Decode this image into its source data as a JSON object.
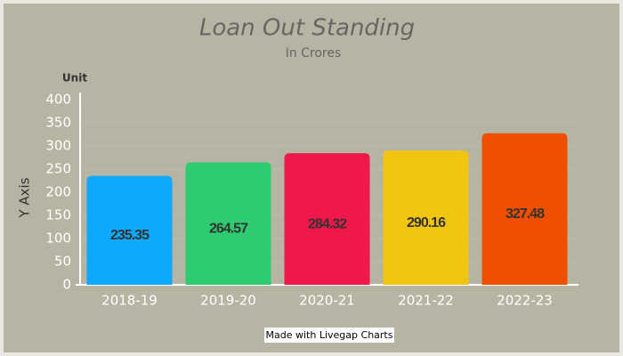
{
  "chart_data": {
    "type": "bar",
    "title": "Loan Out Standing",
    "subtitle": "In Crores",
    "y_axis_label": "Y Axis",
    "unit_label": "Unit",
    "watermark": "Made with Livegap Charts",
    "categories": [
      "2018-19",
      "2019-20",
      "2020-21",
      "2021-22",
      "2022-23"
    ],
    "values": [
      235.35,
      264.57,
      284.32,
      290.16,
      327.48
    ],
    "colors": [
      "#0ea8ff",
      "#2ecc71",
      "#f0174a",
      "#f1c40f",
      "#f04e00"
    ],
    "ylim": [
      0,
      400
    ],
    "yticks": [
      0,
      50,
      100,
      150,
      200,
      250,
      300,
      350,
      400
    ],
    "grid": true
  }
}
